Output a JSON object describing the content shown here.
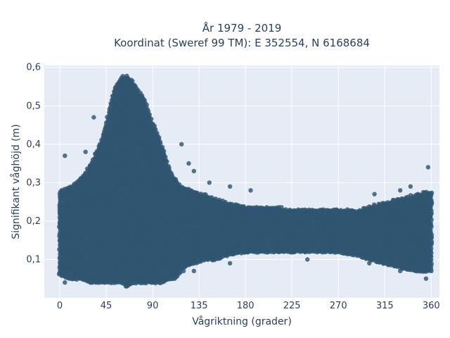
{
  "chart_data": {
    "type": "scatter",
    "title_line1": "År 1979 - 2019",
    "title_line2": "Koordinat (Sweref 99 TM): E 352554, N 6168684",
    "xlabel": "Vågriktning (grader)",
    "ylabel": "Signifikant våghöjd (m)",
    "xlim": [
      -15,
      368
    ],
    "ylim": [
      0,
      0.605
    ],
    "xticks": [
      0,
      45,
      90,
      135,
      180,
      225,
      270,
      315,
      360
    ],
    "xtick_labels": [
      "0",
      "45",
      "90",
      "135",
      "180",
      "225",
      "270",
      "315",
      "360"
    ],
    "yticks": [
      0.1,
      0.2,
      0.3,
      0.4,
      0.5,
      0.6
    ],
    "ytick_labels": [
      "0,1",
      "0,2",
      "0,3",
      "0,4",
      "0,5",
      "0,6"
    ],
    "grid": true,
    "marker_color": "#2f5571",
    "background_color": "#e5ecf6",
    "envelope": {
      "x": [
        0,
        10,
        20,
        30,
        40,
        45,
        50,
        55,
        60,
        65,
        70,
        75,
        80,
        85,
        90,
        95,
        100,
        105,
        110,
        115,
        120,
        130,
        140,
        150,
        160,
        180,
        200,
        225,
        250,
        270,
        290,
        300,
        315,
        330,
        345,
        360
      ],
      "ymin": [
        0.06,
        0.05,
        0.05,
        0.04,
        0.04,
        0.04,
        0.04,
        0.04,
        0.04,
        0.03,
        0.04,
        0.04,
        0.04,
        0.04,
        0.04,
        0.04,
        0.04,
        0.05,
        0.05,
        0.06,
        0.08,
        0.09,
        0.1,
        0.1,
        0.11,
        0.12,
        0.12,
        0.12,
        0.12,
        0.12,
        0.11,
        0.1,
        0.09,
        0.08,
        0.07,
        0.07
      ],
      "ymax": [
        0.28,
        0.29,
        0.31,
        0.35,
        0.41,
        0.46,
        0.52,
        0.56,
        0.58,
        0.58,
        0.57,
        0.55,
        0.53,
        0.5,
        0.46,
        0.43,
        0.39,
        0.35,
        0.32,
        0.3,
        0.29,
        0.28,
        0.27,
        0.26,
        0.25,
        0.24,
        0.24,
        0.23,
        0.23,
        0.23,
        0.23,
        0.24,
        0.25,
        0.26,
        0.27,
        0.28
      ]
    },
    "outliers": [
      {
        "x": 5,
        "y": 0.37
      },
      {
        "x": 25,
        "y": 0.38
      },
      {
        "x": 33,
        "y": 0.47
      },
      {
        "x": 118,
        "y": 0.4
      },
      {
        "x": 125,
        "y": 0.35
      },
      {
        "x": 130,
        "y": 0.33
      },
      {
        "x": 145,
        "y": 0.3
      },
      {
        "x": 165,
        "y": 0.29
      },
      {
        "x": 185,
        "y": 0.28
      },
      {
        "x": 305,
        "y": 0.27
      },
      {
        "x": 330,
        "y": 0.28
      },
      {
        "x": 340,
        "y": 0.29
      },
      {
        "x": 357,
        "y": 0.34
      },
      {
        "x": 5,
        "y": 0.04
      },
      {
        "x": 30,
        "y": 0.04
      },
      {
        "x": 65,
        "y": 0.03
      },
      {
        "x": 120,
        "y": 0.07
      },
      {
        "x": 130,
        "y": 0.07
      },
      {
        "x": 165,
        "y": 0.09
      },
      {
        "x": 240,
        "y": 0.1
      },
      {
        "x": 300,
        "y": 0.09
      },
      {
        "x": 330,
        "y": 0.07
      },
      {
        "x": 355,
        "y": 0.05
      }
    ]
  }
}
